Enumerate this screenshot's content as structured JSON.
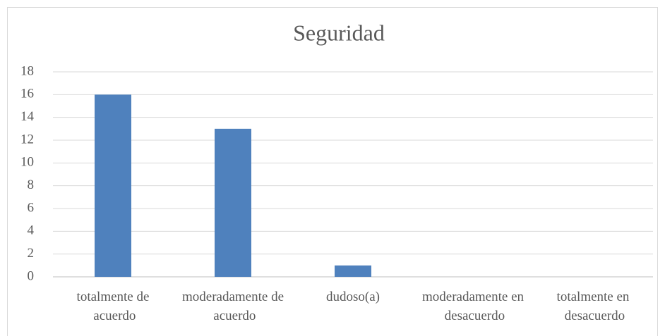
{
  "chart_data": {
    "type": "bar",
    "title": "Seguridad",
    "categories": [
      "totalmente de acuerdo",
      "moderadamente de acuerdo",
      "dudoso(a)",
      "moderadamente en desacuerdo",
      "totalmente en desacuerdo"
    ],
    "values": [
      16,
      13,
      1,
      0,
      0
    ],
    "color": "#4f81bd",
    "ylim": [
      0,
      18
    ],
    "yticks": [
      0,
      2,
      4,
      6,
      8,
      10,
      12,
      14,
      16,
      18
    ],
    "grid": true
  }
}
